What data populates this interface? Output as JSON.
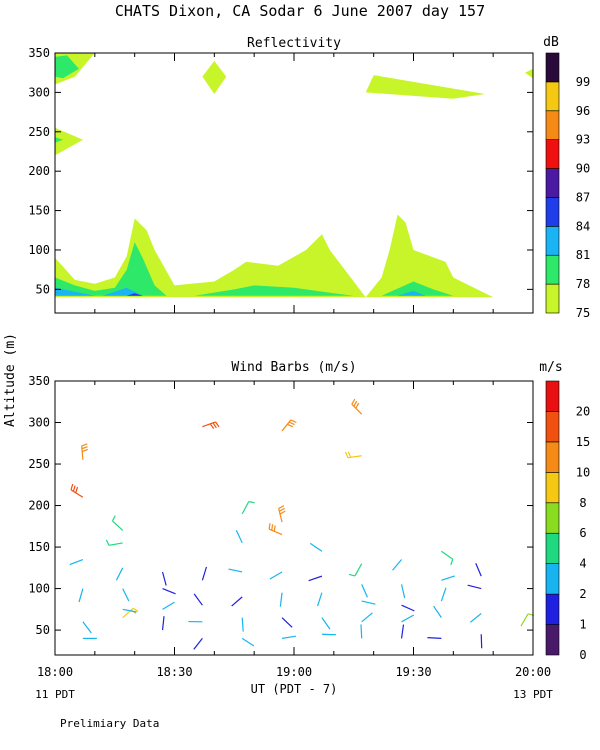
{
  "header": {
    "title": "CHATS Dixon, CA  Sodar    6 June 2007   day 157",
    "shared_ylabel": "Altitude (m)",
    "footer_note": "Prelimiary Data"
  },
  "chart_data": [
    {
      "type": "contour",
      "title": "Reflectivity",
      "ylim": [
        20,
        350
      ],
      "yticks": [
        50,
        100,
        150,
        200,
        250,
        300,
        350
      ],
      "xlim": [
        0,
        120
      ],
      "colorbar": {
        "unit": "dB",
        "levels": [
          "75",
          "78",
          "81",
          "84",
          "87",
          "90",
          "93",
          "96",
          "99"
        ],
        "colors": [
          "#c8f52a",
          "#2ee86a",
          "#1ab4f5",
          "#1f3de8",
          "#4a1aa3",
          "#f01010",
          "#f58a16",
          "#f5c814",
          "#2a0a3a"
        ]
      },
      "contours": [
        {
          "level": "75",
          "color": "#c8f52a",
          "polygon": [
            [
              0,
              90
            ],
            [
              5,
              62
            ],
            [
              10,
              57
            ],
            [
              15,
              65
            ],
            [
              18,
              92
            ],
            [
              20,
              140
            ],
            [
              23,
              125
            ],
            [
              25,
              100
            ],
            [
              30,
              55
            ],
            [
              40,
              60
            ],
            [
              45,
              75
            ],
            [
              48,
              85
            ],
            [
              56,
              80
            ],
            [
              63,
              100
            ],
            [
              67,
              120
            ],
            [
              69,
              100
            ],
            [
              72,
              80
            ],
            [
              78,
              40
            ],
            [
              82,
              65
            ],
            [
              84,
              100
            ],
            [
              86,
              145
            ],
            [
              88,
              135
            ],
            [
              90,
              100
            ],
            [
              98,
              85
            ],
            [
              100,
              65
            ],
            [
              110,
              40
            ],
            [
              0,
              40
            ]
          ]
        },
        {
          "level": "75",
          "color": "#c8f52a",
          "polygon": [
            [
              0,
              255
            ],
            [
              7,
              240
            ],
            [
              0,
              220
            ]
          ]
        },
        {
          "level": "75",
          "color": "#c8f52a",
          "polygon": [
            [
              0,
              350
            ],
            [
              10,
              350
            ],
            [
              5,
              320
            ],
            [
              0,
              310
            ]
          ]
        },
        {
          "level": "75",
          "color": "#c8f52a",
          "polygon": [
            [
              37,
              320
            ],
            [
              40,
              340
            ],
            [
              43,
              320
            ],
            [
              40,
              298
            ]
          ]
        },
        {
          "level": "75",
          "color": "#c8f52a",
          "polygon": [
            [
              80,
              322
            ],
            [
              78,
              300
            ],
            [
              100,
              292
            ],
            [
              108,
              298
            ]
          ]
        },
        {
          "level": "75",
          "color": "#c8f52a",
          "polygon": [
            [
              118,
              325
            ],
            [
              120,
              330
            ],
            [
              120,
              318
            ]
          ]
        },
        {
          "level": "78",
          "color": "#2ee86a",
          "polygon": [
            [
              0,
              65
            ],
            [
              5,
              55
            ],
            [
              10,
              48
            ],
            [
              15,
              52
            ],
            [
              18,
              75
            ],
            [
              20,
              110
            ],
            [
              22,
              90
            ],
            [
              25,
              55
            ],
            [
              28,
              42
            ],
            [
              0,
              42
            ]
          ]
        },
        {
          "level": "78",
          "color": "#2ee86a",
          "polygon": [
            [
              35,
              42
            ],
            [
              45,
              50
            ],
            [
              50,
              55
            ],
            [
              60,
              52
            ],
            [
              70,
              45
            ],
            [
              75,
              42
            ]
          ]
        },
        {
          "level": "78",
          "color": "#2ee86a",
          "polygon": [
            [
              82,
              42
            ],
            [
              90,
              60
            ],
            [
              95,
              50
            ],
            [
              100,
              42
            ]
          ]
        },
        {
          "level": "78",
          "color": "#2ee86a",
          "polygon": [
            [
              0,
              345
            ],
            [
              3,
              347
            ],
            [
              6,
              330
            ],
            [
              2,
              318
            ],
            [
              0,
              320
            ]
          ]
        },
        {
          "level": "78",
          "color": "#2ee86a",
          "polygon": [
            [
              0,
              243
            ],
            [
              2,
              240
            ],
            [
              0,
              236
            ]
          ]
        },
        {
          "level": "81",
          "color": "#1ab4f5",
          "polygon": [
            [
              0,
              52
            ],
            [
              5,
              47
            ],
            [
              10,
              42
            ],
            [
              0,
              42
            ]
          ]
        },
        {
          "level": "81",
          "color": "#1ab4f5",
          "polygon": [
            [
              12,
              42
            ],
            [
              18,
              52
            ],
            [
              22,
              42
            ]
          ]
        },
        {
          "level": "81",
          "color": "#1ab4f5",
          "polygon": [
            [
              86,
              42
            ],
            [
              90,
              48
            ],
            [
              93,
              42
            ]
          ]
        },
        {
          "level": "84",
          "color": "#1f3de8",
          "polygon": [
            [
              18,
              42
            ],
            [
              20,
              45
            ],
            [
              22,
              42
            ]
          ]
        }
      ]
    },
    {
      "type": "wind_barbs",
      "title": "Wind Barbs (m/s)",
      "xlabel": "UT  (PDT - 7)",
      "ylim": [
        20,
        350
      ],
      "yticks": [
        50,
        100,
        150,
        200,
        250,
        300,
        350
      ],
      "xlim": [
        0,
        120
      ],
      "xticks": [
        {
          "x": 0,
          "label": "18:00"
        },
        {
          "x": 30,
          "label": "18:30"
        },
        {
          "x": 60,
          "label": "19:00"
        },
        {
          "x": 90,
          "label": "19:30"
        },
        {
          "x": 120,
          "label": "20:00"
        }
      ],
      "xticks_sub": [
        {
          "x": 0,
          "label": "11 PDT"
        },
        {
          "x": 120,
          "label": "13 PDT"
        }
      ],
      "colorbar": {
        "unit": "m/s",
        "levels": [
          "0",
          "1",
          "2",
          "4",
          "6",
          "8",
          "10",
          "15",
          "20"
        ],
        "colors": [
          "#4a1a6a",
          "#2020e0",
          "#18b4f0",
          "#20d880",
          "#8adc20",
          "#f5c814",
          "#f58a16",
          "#f05010",
          "#e81010"
        ]
      },
      "barbs": [
        {
          "t": 7,
          "alt": 40,
          "speed": 2
        },
        {
          "t": 7,
          "alt": 60,
          "speed": 2
        },
        {
          "t": 7,
          "alt": 100,
          "speed": 2
        },
        {
          "t": 7,
          "alt": 135,
          "speed": 3
        },
        {
          "t": 7,
          "alt": 210,
          "speed": 18
        },
        {
          "t": 7,
          "alt": 255,
          "speed": 12
        },
        {
          "t": 17,
          "alt": 65,
          "speed": 8
        },
        {
          "t": 17,
          "alt": 75,
          "speed": 3
        },
        {
          "t": 17,
          "alt": 100,
          "speed": 2
        },
        {
          "t": 17,
          "alt": 125,
          "speed": 2
        },
        {
          "t": 17,
          "alt": 155,
          "speed": 5
        },
        {
          "t": 17,
          "alt": 170,
          "speed": 5
        },
        {
          "t": 27,
          "alt": 50,
          "speed": 1
        },
        {
          "t": 27,
          "alt": 75,
          "speed": 3
        },
        {
          "t": 27,
          "alt": 100,
          "speed": 1
        },
        {
          "t": 27,
          "alt": 120,
          "speed": 1
        },
        {
          "t": 37,
          "alt": 40,
          "speed": 1
        },
        {
          "t": 37,
          "alt": 60,
          "speed": 2
        },
        {
          "t": 37,
          "alt": 80,
          "speed": 1
        },
        {
          "t": 37,
          "alt": 110,
          "speed": 1
        },
        {
          "t": 37,
          "alt": 295,
          "speed": 18
        },
        {
          "t": 47,
          "alt": 40,
          "speed": 2
        },
        {
          "t": 47,
          "alt": 65,
          "speed": 2
        },
        {
          "t": 47,
          "alt": 90,
          "speed": 1
        },
        {
          "t": 47,
          "alt": 120,
          "speed": 2
        },
        {
          "t": 47,
          "alt": 155,
          "speed": 3
        },
        {
          "t": 47,
          "alt": 190,
          "speed": 5
        },
        {
          "t": 57,
          "alt": 40,
          "speed": 2
        },
        {
          "t": 57,
          "alt": 65,
          "speed": 1
        },
        {
          "t": 57,
          "alt": 95,
          "speed": 2
        },
        {
          "t": 57,
          "alt": 120,
          "speed": 2
        },
        {
          "t": 57,
          "alt": 165,
          "speed": 10
        },
        {
          "t": 57,
          "alt": 180,
          "speed": 14
        },
        {
          "t": 57,
          "alt": 290,
          "speed": 10
        },
        {
          "t": 67,
          "alt": 45,
          "speed": 2
        },
        {
          "t": 67,
          "alt": 65,
          "speed": 2
        },
        {
          "t": 67,
          "alt": 95,
          "speed": 2
        },
        {
          "t": 67,
          "alt": 115,
          "speed": 1
        },
        {
          "t": 67,
          "alt": 145,
          "speed": 3
        },
        {
          "t": 77,
          "alt": 40,
          "speed": 2
        },
        {
          "t": 77,
          "alt": 60,
          "speed": 2
        },
        {
          "t": 77,
          "alt": 85,
          "speed": 2
        },
        {
          "t": 77,
          "alt": 105,
          "speed": 2
        },
        {
          "t": 77,
          "alt": 130,
          "speed": 4
        },
        {
          "t": 77,
          "alt": 260,
          "speed": 9
        },
        {
          "t": 77,
          "alt": 310,
          "speed": 10
        },
        {
          "t": 87,
          "alt": 40,
          "speed": 1
        },
        {
          "t": 87,
          "alt": 60,
          "speed": 2
        },
        {
          "t": 87,
          "alt": 80,
          "speed": 1
        },
        {
          "t": 87,
          "alt": 105,
          "speed": 2
        },
        {
          "t": 87,
          "alt": 135,
          "speed": 3
        },
        {
          "t": 97,
          "alt": 40,
          "speed": 1
        },
        {
          "t": 97,
          "alt": 65,
          "speed": 2
        },
        {
          "t": 97,
          "alt": 85,
          "speed": 2
        },
        {
          "t": 97,
          "alt": 110,
          "speed": 2
        },
        {
          "t": 97,
          "alt": 145,
          "speed": 4
        },
        {
          "t": 107,
          "alt": 45,
          "speed": 1
        },
        {
          "t": 107,
          "alt": 70,
          "speed": 2
        },
        {
          "t": 107,
          "alt": 100,
          "speed": 1
        },
        {
          "t": 107,
          "alt": 115,
          "speed": 1
        },
        {
          "t": 117,
          "alt": 55,
          "speed": 6
        }
      ]
    }
  ]
}
